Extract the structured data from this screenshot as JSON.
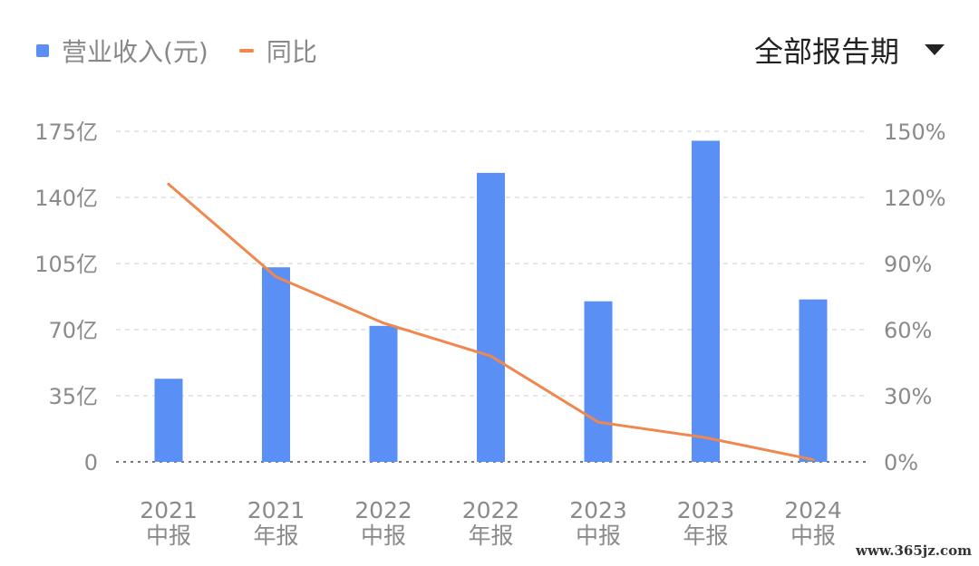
{
  "legend": {
    "bar_label": "营业收入(元)",
    "line_label": "同比"
  },
  "period_selector": {
    "label": "全部报告期"
  },
  "watermark": "www.365jz.com",
  "colors": {
    "bar": "#5a8ff5",
    "line": "#f0874f",
    "axis_text": "#8a8a8a",
    "grid": "#dddddd"
  },
  "chart_data": {
    "type": "bar",
    "categories": [
      [
        "2021",
        "中报"
      ],
      [
        "2021",
        "年报"
      ],
      [
        "2022",
        "中报"
      ],
      [
        "2022",
        "年报"
      ],
      [
        "2023",
        "中报"
      ],
      [
        "2023",
        "年报"
      ],
      [
        "2024",
        "中报"
      ]
    ],
    "series": [
      {
        "name": "营业收入(元)",
        "type": "bar",
        "axis": "left",
        "values": [
          44,
          103,
          72,
          153,
          85,
          170,
          86
        ],
        "unit": "亿"
      },
      {
        "name": "同比",
        "type": "line",
        "axis": "right",
        "values": [
          126,
          84,
          63,
          48,
          18,
          11,
          1
        ],
        "unit": "%"
      }
    ],
    "y_left": {
      "ticks": [
        "0",
        "35亿",
        "70亿",
        "105亿",
        "140亿",
        "175亿"
      ],
      "min": 0,
      "max": 175
    },
    "y_right": {
      "ticks": [
        "0%",
        "30%",
        "60%",
        "90%",
        "120%",
        "150%"
      ],
      "min": 0,
      "max": 150
    },
    "grid": true,
    "legend_position": "top-left"
  }
}
